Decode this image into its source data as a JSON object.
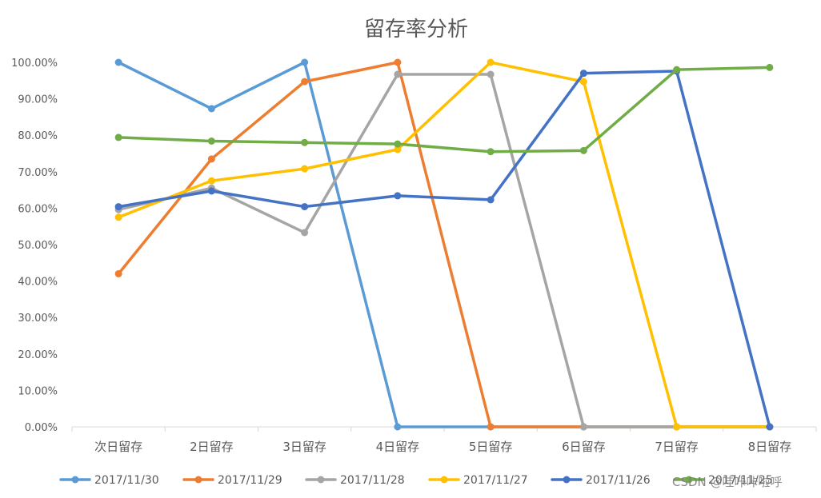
{
  "chart_data": {
    "type": "line",
    "title": "留存率分析",
    "categories": [
      "次日留存",
      "2日留存",
      "3日留存",
      "4日留存",
      "5日留存",
      "6日留存",
      "7日留存",
      "8日留存"
    ],
    "ylim": [
      0,
      100
    ],
    "y_ticks": [
      "0.00%",
      "10.00%",
      "20.00%",
      "30.00%",
      "40.00%",
      "50.00%",
      "60.00%",
      "70.00%",
      "80.00%",
      "90.00%",
      "100.00%"
    ],
    "grid": false,
    "legend_position": "bottom",
    "series": [
      {
        "name": "2017/11/30",
        "color": "#5B9BD5",
        "values": [
          100.0,
          87.3,
          100.0,
          0.0,
          0.0,
          0.0,
          0.0,
          0.0
        ]
      },
      {
        "name": "2017/11/29",
        "color": "#ED7D31",
        "values": [
          42.0,
          73.5,
          94.7,
          100.0,
          0.0,
          0.0,
          0.0,
          0.0
        ]
      },
      {
        "name": "2017/11/28",
        "color": "#A5A5A5",
        "values": [
          59.6,
          65.5,
          53.3,
          96.7,
          96.7,
          0.0,
          0.0,
          0.0
        ]
      },
      {
        "name": "2017/11/27",
        "color": "#FFC000",
        "values": [
          57.5,
          67.5,
          70.8,
          76.1,
          100.0,
          94.7,
          0.0,
          0.0
        ]
      },
      {
        "name": "2017/11/26",
        "color": "#4472C4",
        "values": [
          60.4,
          64.7,
          60.4,
          63.4,
          62.3,
          97.0,
          97.6,
          0.0
        ]
      },
      {
        "name": "2017/11/25",
        "color": "#70AD47",
        "values": [
          79.4,
          78.4,
          78.0,
          77.6,
          75.5,
          75.8,
          98.0,
          98.6
        ]
      }
    ]
  },
  "watermark": "CSDN @哇咔咔啦呼"
}
